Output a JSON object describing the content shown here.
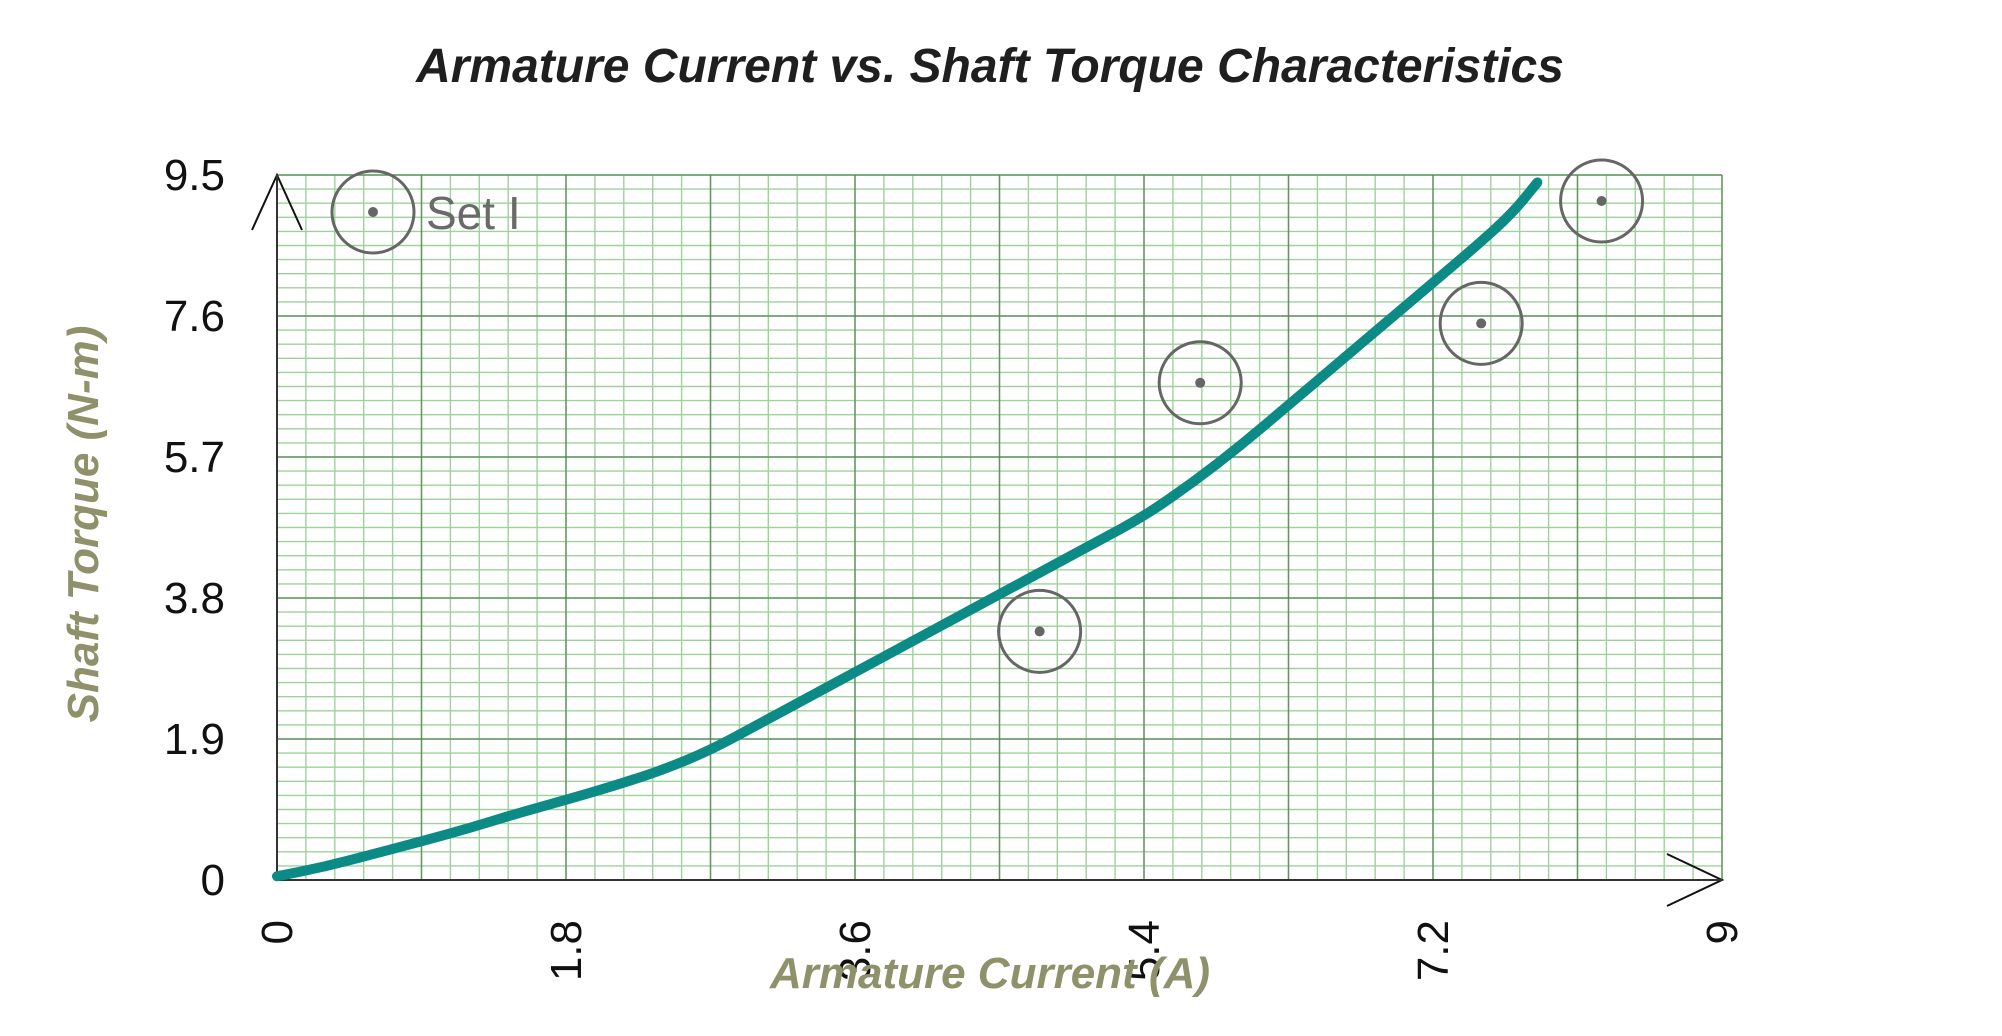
{
  "chart_data": {
    "type": "line",
    "title": "Armature Current vs. Shaft Torque Characteristics",
    "xlabel": "Armature Current (A)",
    "ylabel": "Shaft Torque (N-m)",
    "xlim": [
      0,
      9
    ],
    "ylim": [
      0,
      9.5
    ],
    "x_ticks": [
      "0",
      "1.8",
      "3.6",
      "5.4",
      "7.2",
      "9"
    ],
    "y_ticks": [
      "0",
      "1.9",
      "3.8",
      "5.7",
      "7.6",
      "9.5"
    ],
    "grid": "on",
    "legend": {
      "position": "top-left",
      "label": "Set I"
    },
    "series": [
      {
        "name": "Set I",
        "style": "markers",
        "x": [
          4.75,
          5.75,
          7.5,
          8.25
        ],
        "y": [
          3.35,
          6.7,
          7.5,
          9.15
        ]
      },
      {
        "style": "curve",
        "x": [
          0.0,
          0.3,
          0.6,
          0.9,
          1.2,
          1.5,
          1.8,
          2.1,
          2.4,
          2.7,
          3.0,
          3.3,
          3.6,
          3.9,
          4.2,
          4.5,
          4.8,
          5.1,
          5.4,
          5.7,
          6.0,
          6.3,
          6.6,
          6.9,
          7.2,
          7.5,
          7.7,
          7.85
        ],
        "y": [
          0.05,
          0.18,
          0.35,
          0.52,
          0.7,
          0.9,
          1.08,
          1.27,
          1.48,
          1.75,
          2.1,
          2.45,
          2.8,
          3.15,
          3.5,
          3.85,
          4.2,
          4.55,
          4.9,
          5.35,
          5.85,
          6.4,
          6.95,
          7.5,
          8.05,
          8.6,
          9.0,
          9.4
        ]
      }
    ],
    "colors": {
      "curve": "#0b8a86",
      "marker": "#666666",
      "grid_minor": "#9fd29a",
      "grid_major": "#4f7f4f",
      "title": "#1f1f1f",
      "axis_label": "#8f916b"
    }
  }
}
